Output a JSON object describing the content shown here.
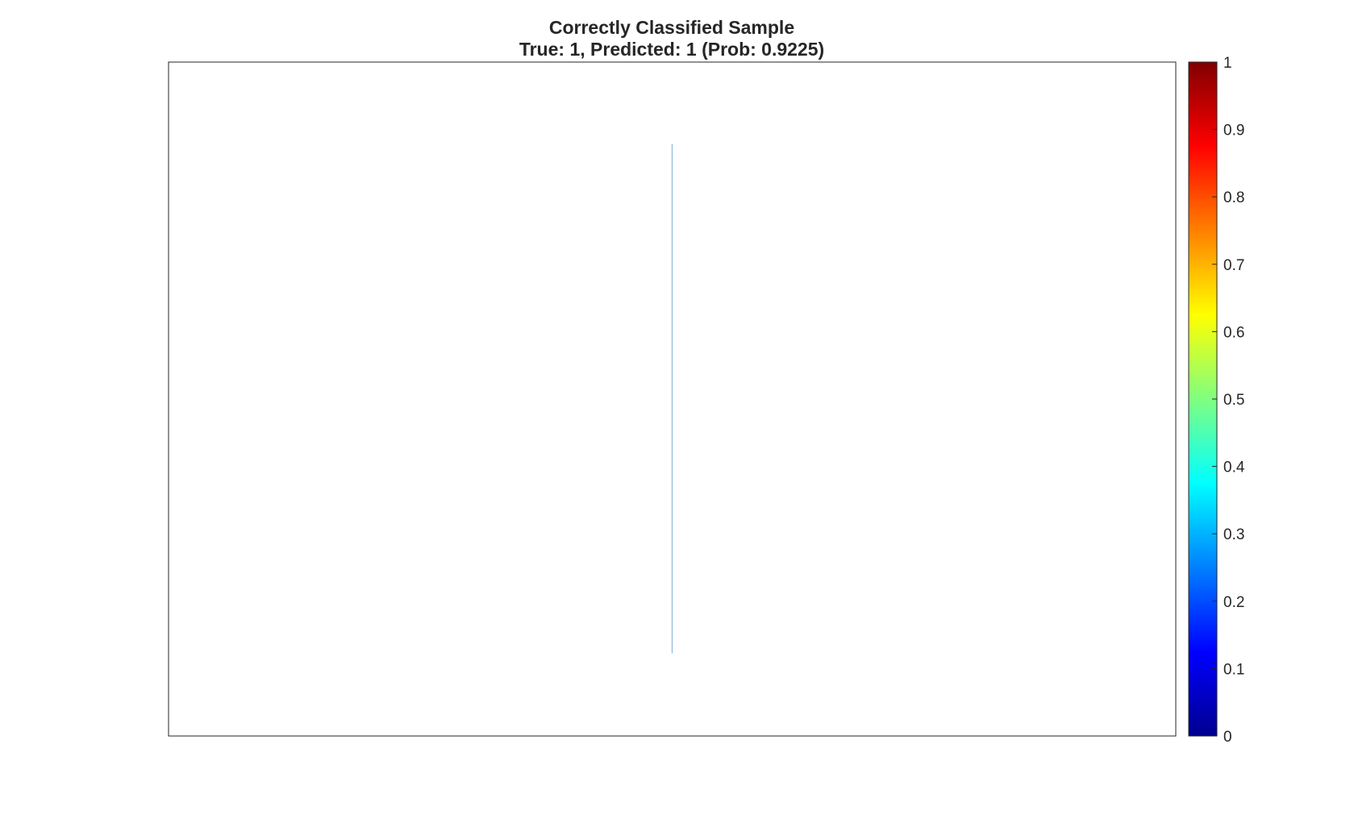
{
  "chart_data": {
    "type": "heatmap",
    "title": "Correctly Classified Sample",
    "subtitle": "True: 1, Predicted: 1 (Prob: 0.9225)",
    "xlabel": "",
    "ylabel": "",
    "axes_ticks_visible": false,
    "grid": false,
    "colormap": "jet",
    "colorbar": {
      "position": "right",
      "range": [
        0,
        1
      ],
      "ticks": [
        {
          "value": 0,
          "label": "0"
        },
        {
          "value": 0.1,
          "label": "0.1"
        },
        {
          "value": 0.2,
          "label": "0.2"
        },
        {
          "value": 0.3,
          "label": "0.3"
        },
        {
          "value": 0.4,
          "label": "0.4"
        },
        {
          "value": 0.5,
          "label": "0.5"
        },
        {
          "value": 0.6,
          "label": "0.6"
        },
        {
          "value": 0.7,
          "label": "0.7"
        },
        {
          "value": 0.8,
          "label": "0.8"
        },
        {
          "value": 0.9,
          "label": "0.9"
        },
        {
          "value": 1,
          "label": "1"
        }
      ],
      "colors": [
        "#00008f",
        "#0000ff",
        "#0080ff",
        "#00ffff",
        "#80ff80",
        "#ffff00",
        "#ff8000",
        "#ff0000",
        "#800000"
      ]
    },
    "series": [
      {
        "mark": "vertical-line",
        "value": 0.28,
        "color": "#9bbfe6"
      }
    ]
  }
}
